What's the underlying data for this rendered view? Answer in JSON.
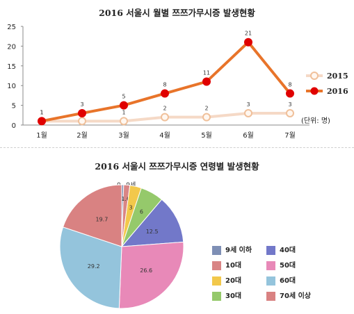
{
  "chart_data": [
    {
      "type": "line",
      "title": "2016 서울시 월별 쯔쯔가무시증 발생현황",
      "categories": [
        "1월",
        "2월",
        "3월",
        "4월",
        "5월",
        "6월",
        "7월"
      ],
      "ylim": [
        0,
        25
      ],
      "yticks": [
        0,
        5,
        10,
        15,
        20,
        25
      ],
      "unit_note": "(단위: 명)",
      "legend_position": "right",
      "series": [
        {
          "name": "2015",
          "values": [
            1,
            1,
            1,
            2,
            2,
            3,
            3
          ],
          "color": "#f5d9c6",
          "marker": "hollow"
        },
        {
          "name": "2016",
          "values": [
            1,
            3,
            5,
            8,
            11,
            21,
            8
          ],
          "color": "#e8742a",
          "marker_color": "#e00000",
          "marker": "filled"
        }
      ]
    },
    {
      "type": "pie",
      "title": "2016 서울시 쯔쯔가무시증 연령별 발생현황",
      "categories": [
        "9세 이하",
        "10대",
        "20대",
        "30대",
        "40대",
        "50대",
        "60대",
        "70세 이상"
      ],
      "values": [
        0.5,
        1.6,
        3,
        6,
        12.5,
        26.6,
        29.2,
        19.7
      ],
      "labels": [
        "0.5",
        "1.6",
        "3",
        "6",
        "12.5",
        "26.6",
        "29.2",
        "19.7"
      ],
      "colors": [
        "#7e8fb5",
        "#d98585",
        "#f2c84b",
        "#95c96b",
        "#7278c9",
        "#e889b8",
        "#94c4dc",
        "#d98282"
      ],
      "legend_position": "right",
      "callout": "0~9세"
    }
  ]
}
